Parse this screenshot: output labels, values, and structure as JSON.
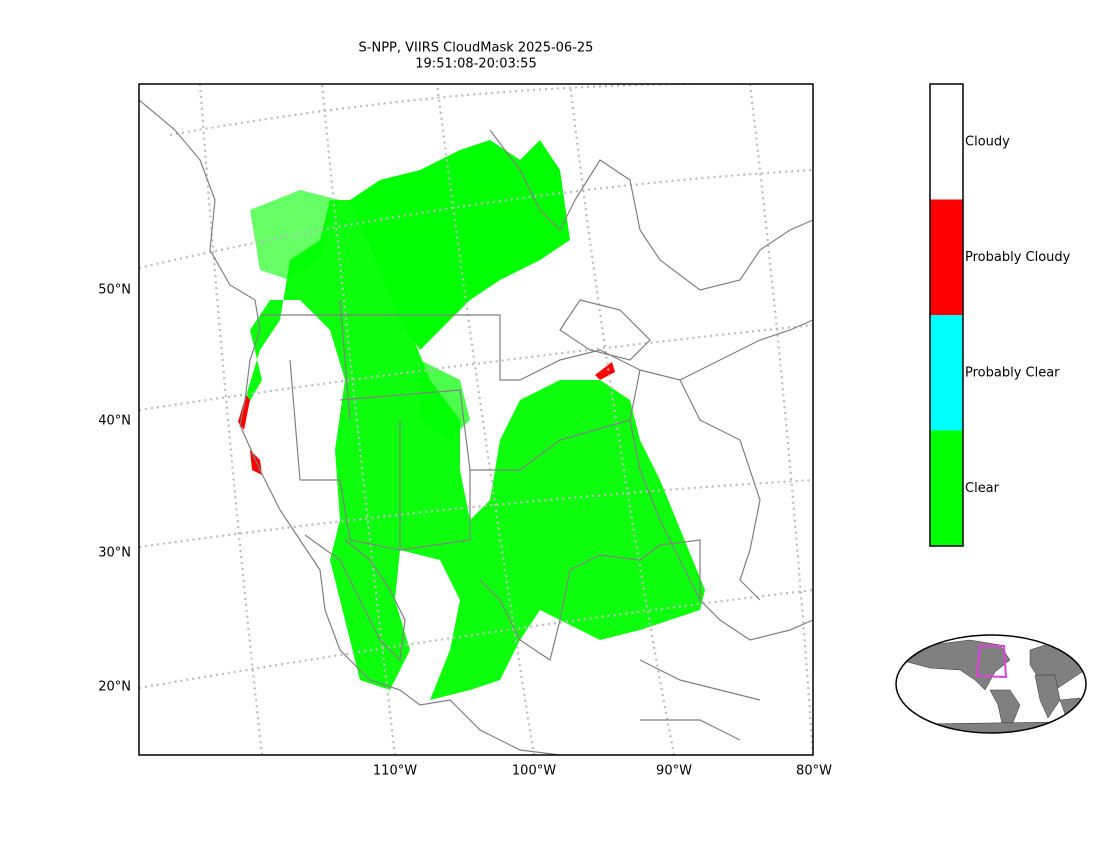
{
  "header": {
    "title": "S-NPP, VIIRS CloudMask 2025-06-25",
    "subtitle": "19:51:08-20:03:55"
  },
  "map": {
    "lat_labels": [
      "50°N",
      "40°N",
      "30°N",
      "20°N"
    ],
    "lon_labels": [
      "110°W",
      "100°W",
      "90°W",
      "80°W"
    ]
  },
  "legend": {
    "items": [
      {
        "label": "Cloudy",
        "color": "#ffffff"
      },
      {
        "label": "Probably Cloudy",
        "color": "#ff0000"
      },
      {
        "label": "Probably Clear",
        "color": "#00ffff"
      },
      {
        "label": "Clear",
        "color": "#00ff00"
      }
    ]
  }
}
